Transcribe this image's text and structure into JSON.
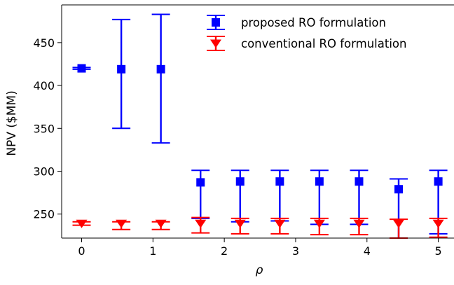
{
  "chart_data": {
    "type": "scatter",
    "title": "",
    "xlabel": "ρ",
    "ylabel": "NPV ($MM)",
    "xlim": [
      -0.28,
      5.22
    ],
    "ylim": [
      222,
      494
    ],
    "x_ticks": [
      0,
      1,
      2,
      3,
      4,
      5
    ],
    "x_tick_labels": [
      "0",
      "1",
      "2",
      "3",
      "4",
      "5"
    ],
    "y_ticks": [
      250,
      300,
      350,
      400,
      450
    ],
    "y_tick_labels": [
      "250",
      "300",
      "350",
      "400",
      "450"
    ],
    "grid": false,
    "legend_position": "top-right",
    "series": [
      {
        "name": "proposed RO formulation",
        "color": "#0000ff",
        "marker": "square",
        "x": [
          0,
          0.556,
          1.111,
          1.667,
          2.222,
          2.778,
          3.333,
          3.889,
          4.444,
          5.0
        ],
        "y": [
          420,
          419,
          419,
          287,
          288,
          288,
          288,
          288,
          279,
          288
        ],
        "y_low": [
          419,
          350,
          333,
          245,
          241,
          242,
          238,
          238,
          222,
          227
        ],
        "y_high": [
          421,
          477,
          483,
          301,
          301,
          301,
          301,
          301,
          291,
          301
        ]
      },
      {
        "name": "conventional RO formulation",
        "color": "#ff0000",
        "marker": "triangle-down",
        "x": [
          0,
          0.556,
          1.111,
          1.667,
          2.222,
          2.778,
          3.333,
          3.889,
          4.444,
          5.0
        ],
        "y": [
          239,
          239,
          239,
          239,
          239,
          239,
          239,
          239,
          239,
          239
        ],
        "y_low": [
          237,
          232,
          232,
          228,
          227,
          227,
          226,
          226,
          222,
          223
        ],
        "y_high": [
          241,
          241,
          241,
          246,
          245,
          245,
          245,
          245,
          244,
          245
        ]
      }
    ]
  }
}
